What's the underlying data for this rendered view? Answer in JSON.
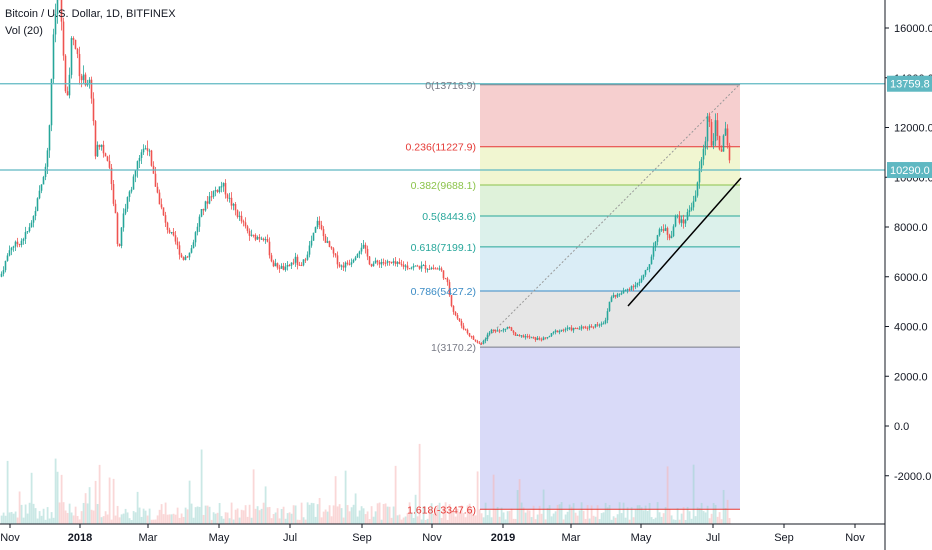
{
  "header": {
    "symbol": "Bitcoin / U.S. Dollar, 1D, BITFINEX",
    "volume_indicator": "Vol (20)"
  },
  "chart_data": {
    "type": "candlestick",
    "y_axis_ticks": [
      "16000.0",
      "14000.0",
      "12000.0",
      "10000.0",
      "8000.0",
      "6000.0",
      "4000.0",
      "2000.0",
      "0.0",
      "-2000.0"
    ],
    "y_axis_values": [
      16000,
      14000,
      12000,
      10000,
      8000,
      6000,
      4000,
      2000,
      0,
      -2000
    ],
    "x_axis_ticks": [
      "Nov",
      "2018",
      "Mar",
      "May",
      "Jul",
      "Sep",
      "Nov",
      "2019",
      "Mar",
      "May",
      "Jul",
      "Sep",
      "Nov"
    ],
    "bold_x_ticks": [
      "2018",
      "2019"
    ],
    "price_lines": [
      {
        "value": 13759.8,
        "label": "13759.8",
        "color": "#5fb8c2"
      },
      {
        "value": 10290.0,
        "label": "10290.0",
        "color": "#5fb8c2"
      }
    ],
    "fibonacci": {
      "levels": [
        {
          "ratio": "0",
          "price": "13716.9",
          "value": 13716.9,
          "color": "#787b86",
          "fill": "#f5c7c7"
        },
        {
          "ratio": "0.236",
          "price": "11227.9",
          "value": 11227.9,
          "color": "#e53935",
          "fill": "#eef5c9"
        },
        {
          "ratio": "0.382",
          "price": "9688.1",
          "value": 9688.1,
          "color": "#8bc34a",
          "fill": "#d9f0d3"
        },
        {
          "ratio": "0.5",
          "price": "8443.6",
          "value": 8443.6,
          "color": "#26a69a",
          "fill": "#d6efe7"
        },
        {
          "ratio": "0.618",
          "price": "7199.1",
          "value": 7199.1,
          "color": "#26a69a",
          "fill": "#d3eaf5"
        },
        {
          "ratio": "0.786",
          "price": "5427.2",
          "value": 5427.2,
          "color": "#3a8bc5",
          "fill": "#e2e2e2"
        },
        {
          "ratio": "1",
          "price": "3170.2",
          "value": 3170.2,
          "color": "#787b86",
          "fill": "#d2d3f7"
        },
        {
          "ratio": "1.618",
          "price": "-3347.6",
          "value": -3347.6,
          "color": "#e53935",
          "fill": null
        }
      ]
    },
    "colors": {
      "up": "#26a69a",
      "down": "#ef5350",
      "trendline": "#000000"
    }
  }
}
